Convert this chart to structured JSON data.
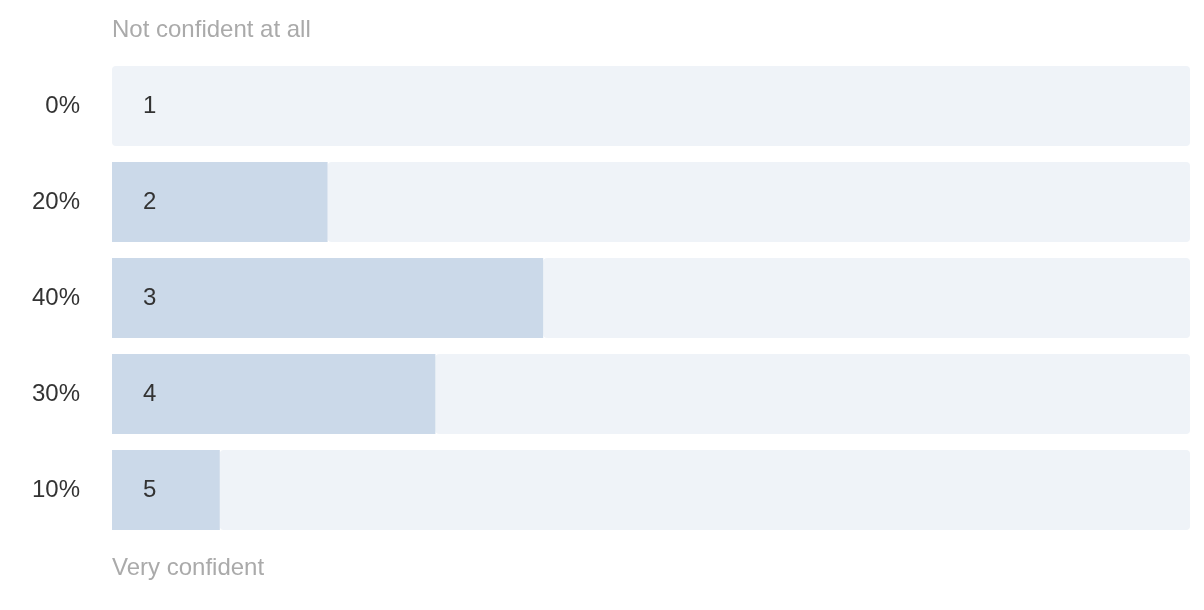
{
  "chart_data": {
    "type": "bar",
    "orientation": "horizontal",
    "stacked": true,
    "categories": [
      "1",
      "2",
      "3",
      "4",
      "5"
    ],
    "series": [
      {
        "values": [
          0,
          20,
          40,
          30,
          10
        ],
        "value_labels": [
          "0%",
          "20%",
          "40%",
          "30%",
          "10%"
        ],
        "color": "#cbd9e9"
      },
      {
        "values": [
          100,
          80,
          60,
          70,
          90
        ],
        "color": "#eff3f8"
      }
    ],
    "xlim": [
      0,
      100
    ],
    "legend": false,
    "annotations": [
      "Not confident at all",
      "Very confident"
    ]
  }
}
